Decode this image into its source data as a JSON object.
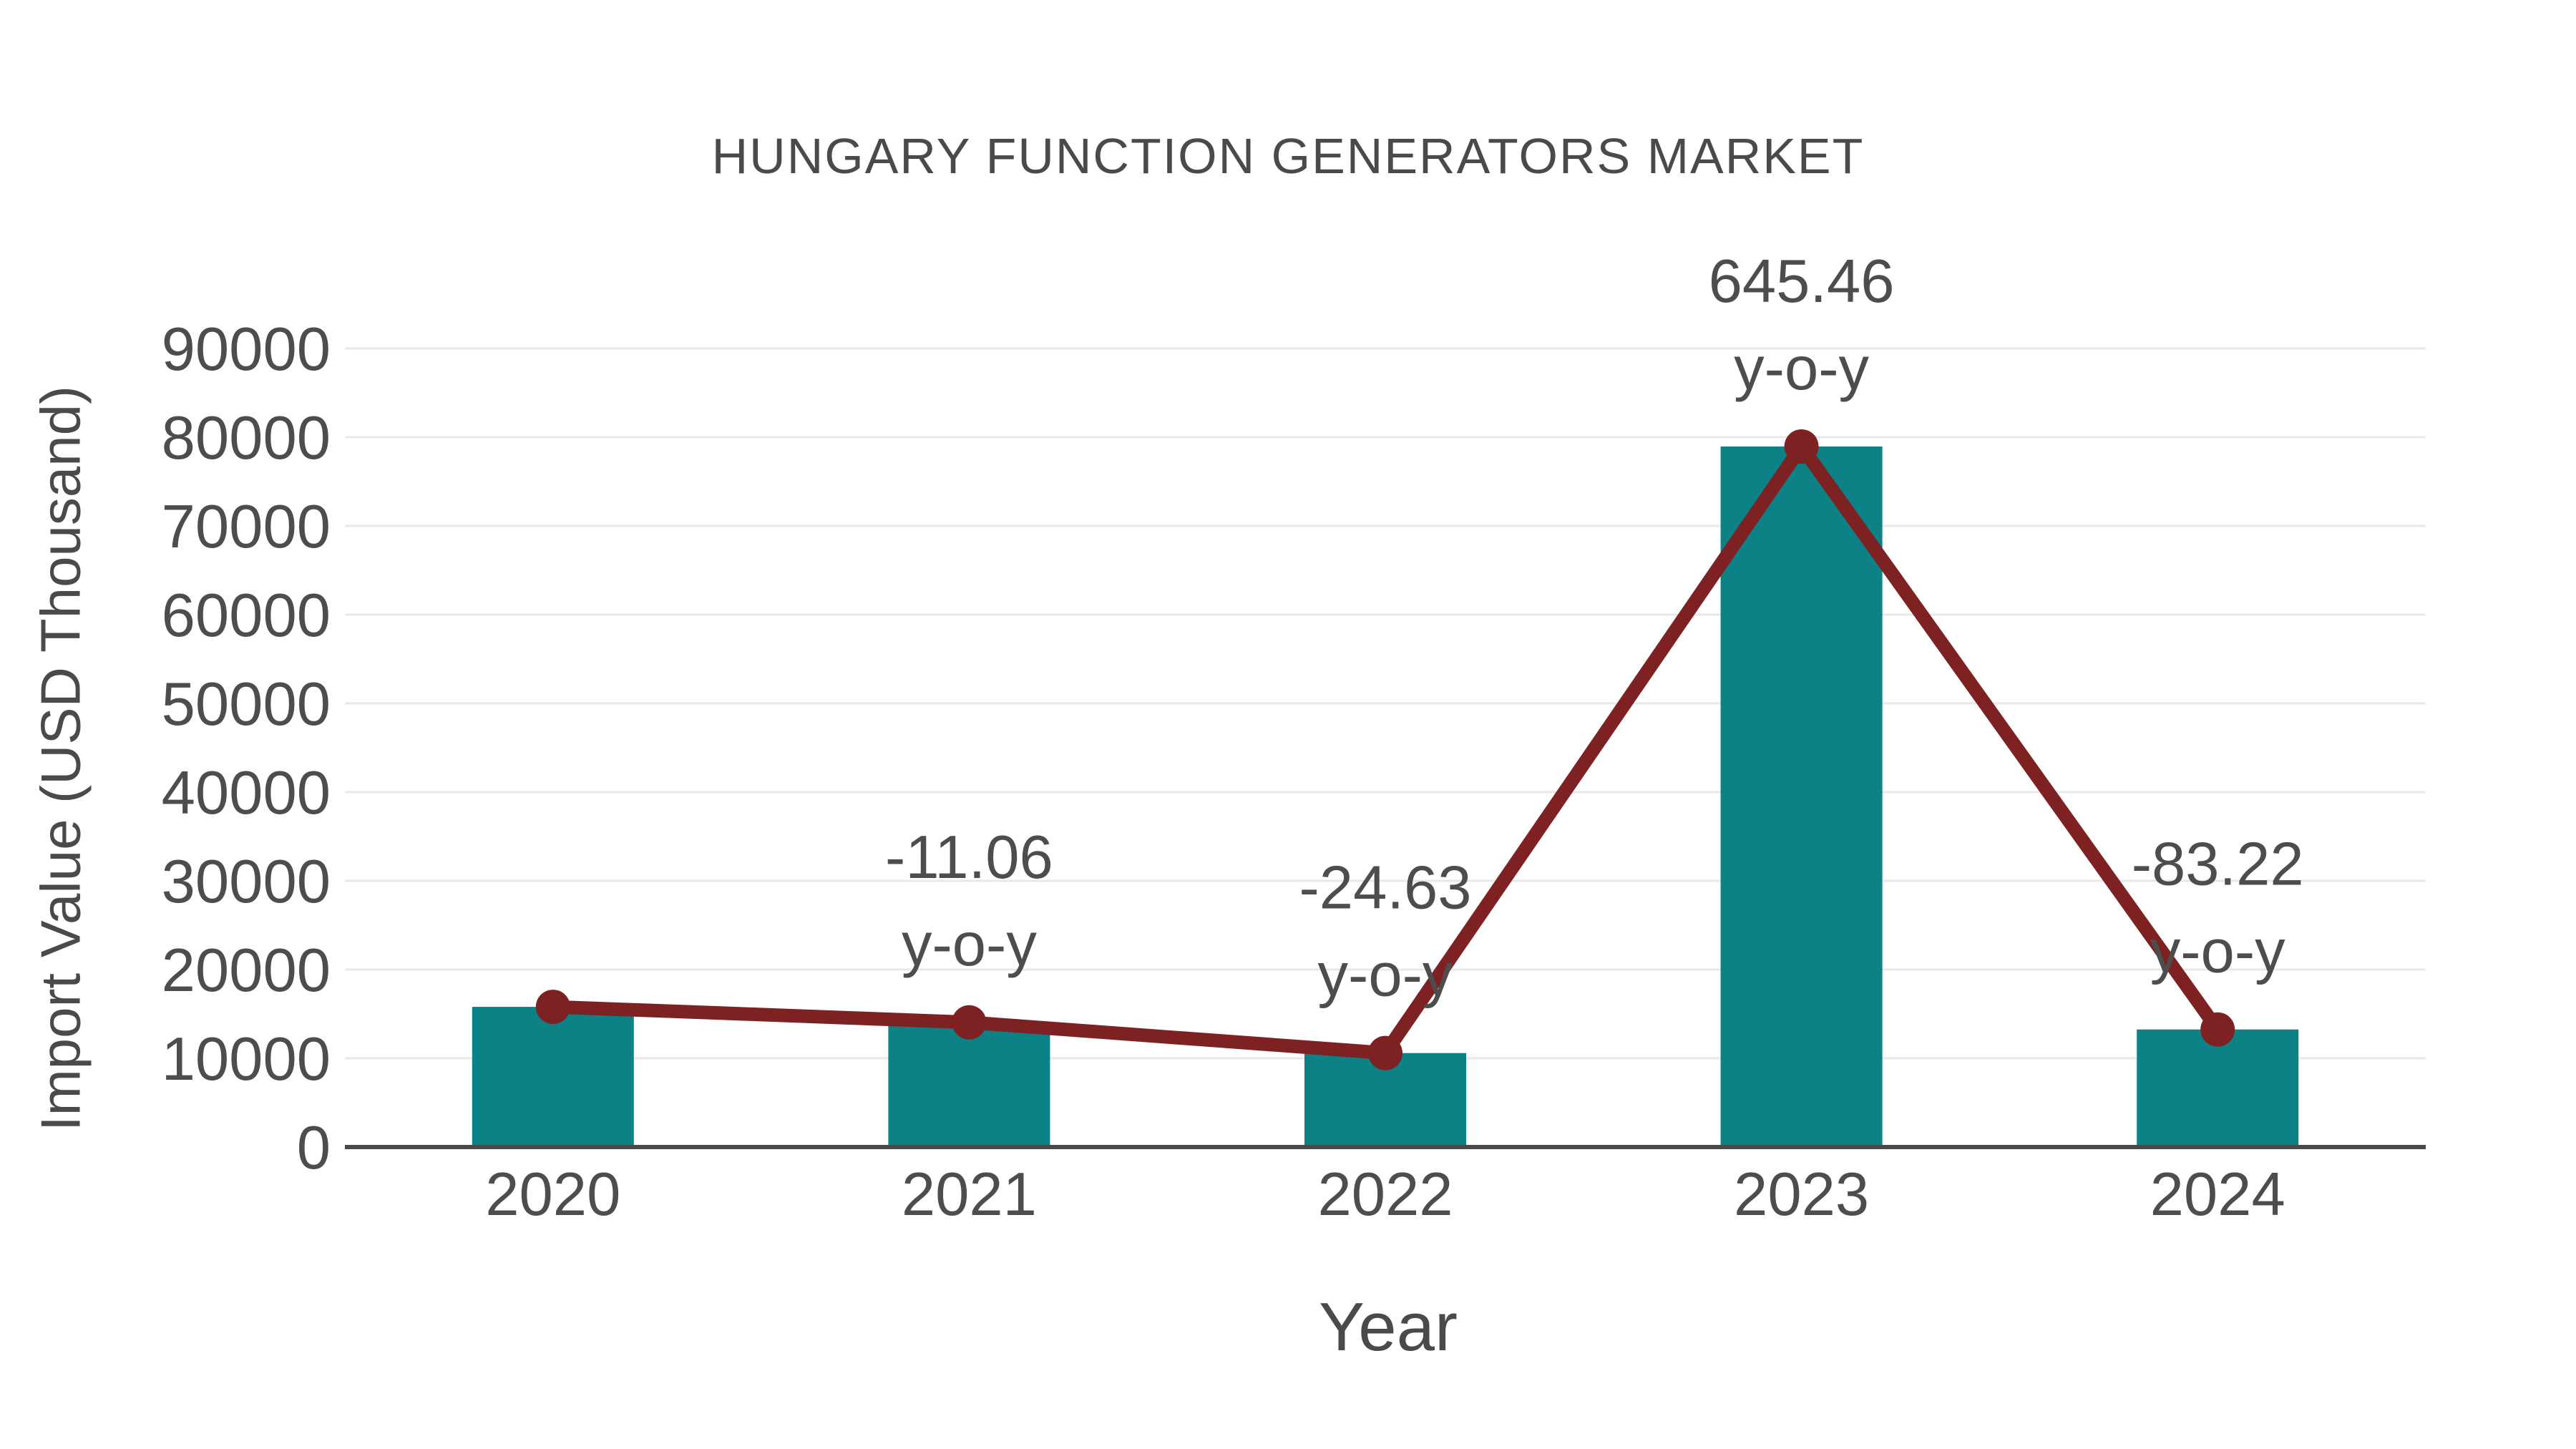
{
  "title": "HUNGARY FUNCTION GENERATORS MARKET",
  "x_axis_title": "Year",
  "y_axis_title": "Import Value (USD Thousand)",
  "colors": {
    "bar": "#0c8286",
    "line": "#7d2123",
    "marker": "#7d2123",
    "text": "#4d4d4d",
    "gridline": "#e8e8e8",
    "axis_line": "#4a4a4a",
    "background": "#ffffff"
  },
  "chart_data": {
    "type": "bar",
    "title": "HUNGARY FUNCTION GENERATORS MARKET",
    "xlabel": "Year",
    "ylabel": "Import Value (USD Thousand)",
    "categories": [
      "2020",
      "2021",
      "2022",
      "2023",
      "2024"
    ],
    "series": [
      {
        "name": "Import Value bars",
        "type": "bar",
        "values": [
          15800,
          14052,
          10591,
          78954,
          13249
        ]
      },
      {
        "name": "Import Value trend",
        "type": "line",
        "values": [
          15800,
          14052,
          10591,
          78954,
          13249
        ]
      }
    ],
    "annotations": [
      {
        "category": "2021",
        "lines": [
          "-11.06",
          "y-o-y"
        ]
      },
      {
        "category": "2022",
        "lines": [
          "-24.63",
          "y-o-y"
        ]
      },
      {
        "category": "2023",
        "lines": [
          "645.46",
          "y-o-y"
        ]
      },
      {
        "category": "2024",
        "lines": [
          "-83.22",
          "y-o-y"
        ]
      }
    ],
    "ylim": [
      0,
      90000
    ],
    "yticks": [
      0,
      10000,
      20000,
      30000,
      40000,
      50000,
      60000,
      70000,
      80000,
      90000
    ],
    "grid": true,
    "legend_position": "none"
  }
}
